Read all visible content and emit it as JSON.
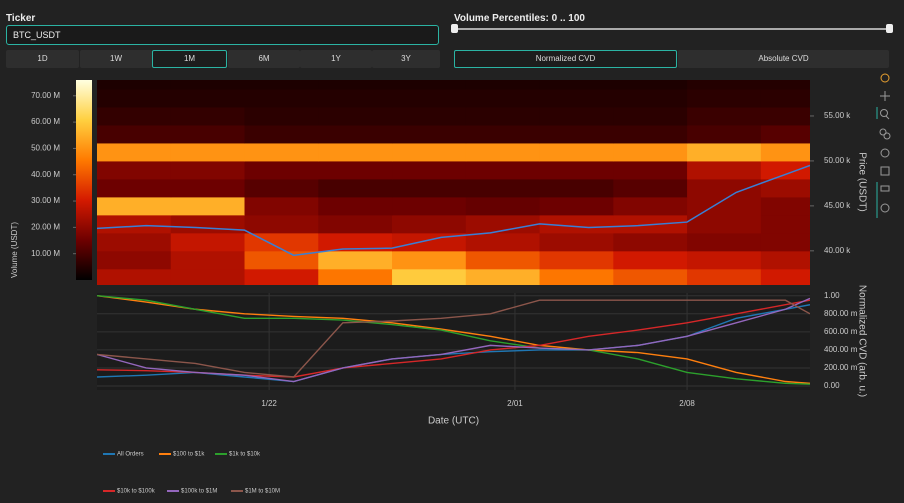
{
  "controls": {
    "ticker_label": "Ticker",
    "ticker_value": "BTC_USDT",
    "percentile_label": "Volume Percentiles: 0 .. 100",
    "range_buttons": [
      "1D",
      "1W",
      "1M",
      "6M",
      "1Y",
      "3Y"
    ],
    "mode_buttons": [
      "Normalized CVD",
      "Absolute CVD"
    ]
  },
  "chart_data": [
    {
      "type": "heatmap",
      "ylabel": "Price (USDT)",
      "zlabel": "Volume (USDT)",
      "xlim": [
        "1/15",
        "2/13"
      ],
      "ylim": [
        36200,
        59000
      ],
      "x_bins": [
        "1/15",
        "1/18",
        "1/21",
        "1/24",
        "1/27",
        "1/30",
        "2/02",
        "2/05",
        "2/08",
        "2/11",
        "2/14"
      ],
      "y_bins": [
        36000,
        38000,
        40000,
        42000,
        44000,
        46000,
        48000,
        50000,
        52000,
        54000,
        56000,
        58000,
        60000
      ],
      "yticks": [
        {
          "value": 40000,
          "label": "40.00 k"
        },
        {
          "value": 45000,
          "label": "45.00 k"
        },
        {
          "value": 50000,
          "label": "50.00 k"
        },
        {
          "value": 55000,
          "label": "55.00 k"
        }
      ],
      "zlim": [
        0,
        76000000
      ],
      "zticks": [
        {
          "value": 10000000,
          "label": "10.00 M"
        },
        {
          "value": 20000000,
          "label": "20.00 M"
        },
        {
          "value": 30000000,
          "label": "30.00 M"
        },
        {
          "value": 40000000,
          "label": "40.00 M"
        },
        {
          "value": 50000000,
          "label": "50.00 M"
        },
        {
          "value": 60000000,
          "label": "60.00 M"
        },
        {
          "value": 70000000,
          "label": "70.00 M"
        }
      ],
      "colorscale": [
        "#000000",
        "#6e0000",
        "#d41a00",
        "#ff7a00",
        "#ffd040",
        "#ffffe0"
      ],
      "values": [
        [
          25000000,
          25000000,
          30000000,
          45000000,
          60000000,
          55000000,
          45000000,
          40000000,
          35000000,
          30000000
        ],
        [
          20000000,
          25000000,
          40000000,
          55000000,
          50000000,
          40000000,
          35000000,
          30000000,
          28000000,
          25000000
        ],
        [
          22000000,
          28000000,
          35000000,
          30000000,
          28000000,
          25000000,
          22000000,
          20000000,
          18000000,
          18000000
        ],
        [
          25000000,
          22000000,
          20000000,
          18000000,
          20000000,
          22000000,
          25000000,
          25000000,
          20000000,
          18000000
        ],
        [
          55000000,
          55000000,
          18000000,
          15000000,
          15000000,
          14000000,
          15000000,
          18000000,
          20000000,
          18000000
        ],
        [
          15000000,
          15000000,
          12000000,
          10000000,
          10000000,
          10000000,
          10000000,
          12000000,
          20000000,
          22000000
        ],
        [
          18000000,
          18000000,
          15000000,
          15000000,
          15000000,
          15000000,
          15000000,
          15000000,
          25000000,
          30000000
        ],
        [
          50000000,
          50000000,
          50000000,
          50000000,
          50000000,
          50000000,
          50000000,
          50000000,
          55000000,
          50000000
        ],
        [
          10000000,
          10000000,
          8000000,
          8000000,
          8000000,
          8000000,
          8000000,
          8000000,
          10000000,
          12000000
        ],
        [
          7000000,
          7000000,
          6000000,
          6000000,
          6000000,
          6000000,
          6000000,
          6000000,
          8000000,
          8000000
        ],
        [
          5000000,
          5000000,
          5000000,
          5000000,
          5000000,
          5000000,
          5000000,
          5000000,
          6000000,
          6000000
        ],
        [
          4000000,
          4000000,
          4000000,
          4000000,
          4000000,
          4000000,
          4000000,
          4000000,
          5000000,
          5000000
        ]
      ],
      "line_color": "#3a7fd5",
      "line_x": [
        "1/15",
        "1/17",
        "1/19",
        "1/21",
        "1/23",
        "1/25",
        "1/27",
        "1/29",
        "1/31",
        "2/02",
        "2/04",
        "2/06",
        "2/08",
        "2/10",
        "2/12",
        "2/13"
      ],
      "line_values": [
        42500,
        42800,
        42600,
        42300,
        39500,
        40200,
        40300,
        41500,
        42000,
        43000,
        42600,
        42800,
        43200,
        46500,
        48500,
        49500
      ]
    },
    {
      "type": "line",
      "xlabel": "Date (UTC)",
      "ylabel": "Normalized CVD (arb. u.)",
      "grid": true,
      "xlim": [
        "1/15",
        "2/13"
      ],
      "ylim": [
        -0.044,
        1.03
      ],
      "xticks": [
        "1/22",
        "2/01",
        "2/08"
      ],
      "yticks": [
        {
          "value": 0,
          "label": "0.00"
        },
        {
          "value": 0.2,
          "label": "200.00 m"
        },
        {
          "value": 0.4,
          "label": "400.00 m"
        },
        {
          "value": 0.6,
          "label": "600.00 m"
        },
        {
          "value": 0.8,
          "label": "800.00 m"
        },
        {
          "value": 1,
          "label": "1.00"
        }
      ],
      "x": [
        "1/15",
        "1/17",
        "1/19",
        "1/21",
        "1/23",
        "1/25",
        "1/27",
        "1/29",
        "1/31",
        "2/02",
        "2/04",
        "2/06",
        "2/08",
        "2/10",
        "2/12",
        "2/13"
      ],
      "series": [
        {
          "name": "All Orders",
          "color": "#1f77b4",
          "values": [
            0.1,
            0.12,
            0.15,
            0.1,
            0.05,
            0.2,
            0.3,
            0.35,
            0.38,
            0.4,
            0.4,
            0.45,
            0.55,
            0.75,
            0.85,
            0.9
          ]
        },
        {
          "name": "$100 to $1k",
          "color": "#ff7f0e",
          "values": [
            1.0,
            0.93,
            0.85,
            0.8,
            0.77,
            0.75,
            0.7,
            0.63,
            0.55,
            0.45,
            0.4,
            0.37,
            0.3,
            0.15,
            0.05,
            0.03
          ]
        },
        {
          "name": "$1k to $10k",
          "color": "#2ca02c",
          "values": [
            1.0,
            0.95,
            0.85,
            0.75,
            0.75,
            0.73,
            0.68,
            0.62,
            0.5,
            0.42,
            0.4,
            0.3,
            0.15,
            0.08,
            0.03,
            0.02
          ]
        },
        {
          "name": "$10k to $100k",
          "color": "#d62728",
          "values": [
            0.18,
            0.17,
            0.15,
            0.12,
            0.1,
            0.2,
            0.25,
            0.3,
            0.4,
            0.45,
            0.55,
            0.62,
            0.7,
            0.8,
            0.9,
            0.95
          ]
        },
        {
          "name": "$100k to $1M",
          "color": "#9467bd",
          "values": [
            0.35,
            0.2,
            0.15,
            0.12,
            0.05,
            0.2,
            0.3,
            0.35,
            0.45,
            0.42,
            0.4,
            0.45,
            0.55,
            0.7,
            0.85,
            0.97
          ]
        },
        {
          "name": "$1M to $10M",
          "color": "#8c564b",
          "values": [
            0.35,
            0.3,
            0.25,
            0.15,
            0.1,
            0.7,
            0.72,
            0.75,
            0.8,
            0.95,
            0.95,
            0.95,
            0.95,
            0.95,
            0.95,
            0.8
          ]
        }
      ]
    }
  ]
}
